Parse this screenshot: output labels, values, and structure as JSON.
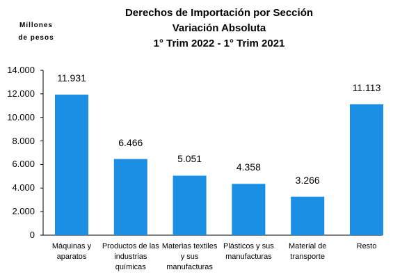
{
  "chart_data": {
    "type": "bar",
    "title": "Derechos de Importación por Sección\nVariación Absoluta\n1° Trim 2022 - 1° Trim 2021",
    "y_label": "Millones\nde pesos",
    "categories": [
      "Máquinas y aparatos",
      "Productos de las industrias químicas",
      "Materias textiles y sus manufacturas",
      "Plásticos y sus manufacturas",
      "Material de transporte",
      "Resto"
    ],
    "values": [
      11931,
      6466,
      5051,
      4358,
      3266,
      11113
    ],
    "value_labels": [
      "11.931",
      "6.466",
      "5.051",
      "4.358",
      "3.266",
      "11.113"
    ],
    "color": "#1a8fe3",
    "ylim": [
      0,
      14000
    ],
    "yticks": [
      0,
      {
        "value": 2000,
        "label": "2.000"
      },
      {
        "value": 4000,
        "label": "4.000"
      },
      {
        "value": 6000,
        "label": "6.000"
      },
      {
        "value": 8000,
        "label": "8.000"
      },
      {
        "value": 10000,
        "label": "10.000"
      },
      {
        "value": 12000,
        "label": "12.000"
      },
      {
        "value": 14000,
        "label": "14.000"
      }
    ],
    "grid": false
  }
}
